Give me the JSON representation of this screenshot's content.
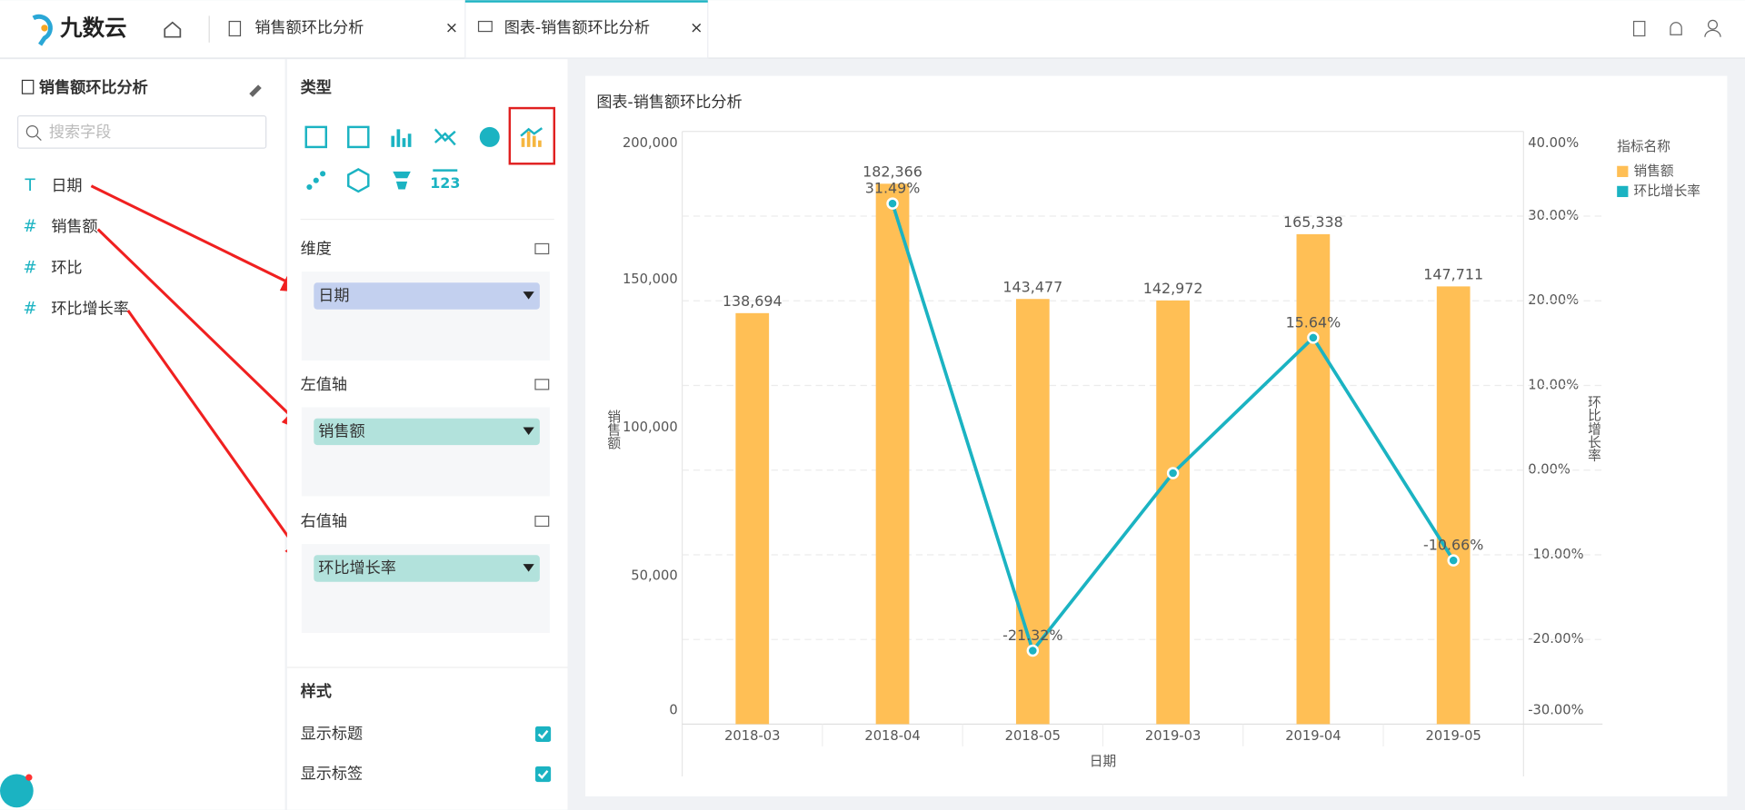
{
  "app": {
    "logo": "九数云"
  },
  "tabs": [
    {
      "label": "销售额环比分析"
    },
    {
      "label": "图表-销售额环比分析"
    }
  ],
  "dataset": {
    "title": "销售额环比分析",
    "search_placeholder": "搜索字段",
    "fields": [
      {
        "type": "T",
        "name": "日期"
      },
      {
        "type": "#",
        "name": "销售额"
      },
      {
        "type": "#",
        "name": "环比"
      },
      {
        "type": "#",
        "name": "环比增长率"
      }
    ]
  },
  "config": {
    "type_heading": "类型",
    "type_icon_label": "123",
    "dimension": {
      "label": "维度",
      "field": "日期"
    },
    "left_axis": {
      "label": "左值轴",
      "field": "销售额"
    },
    "right_axis": {
      "label": "右值轴",
      "field": "环比增长率"
    },
    "style": {
      "heading": "样式",
      "options": [
        "显示标题",
        "显示标签"
      ]
    }
  },
  "chart_data": {
    "type": "combo",
    "title": "图表-销售额环比分析",
    "categories": [
      "2018-03",
      "2018-04",
      "2018-05",
      "2019-03",
      "2019-04",
      "2019-05"
    ],
    "series": [
      {
        "name": "销售额",
        "type": "bar",
        "color": "#ffbf55",
        "values": [
          138694,
          182366,
          143477,
          142972,
          165338,
          147711
        ],
        "value_labels": [
          "138,694",
          "182,366",
          "143,477",
          "142,972",
          "165,338",
          "147,711"
        ]
      },
      {
        "name": "环比增长率",
        "type": "line",
        "axis": "y2",
        "color": "#1bb3c2",
        "values": [
          null,
          31.49,
          -21.32,
          -0.35,
          15.64,
          -10.66
        ],
        "value_labels": [
          null,
          "31.49%",
          "-21.32%",
          null,
          "15.64%",
          "-10.66%"
        ]
      }
    ],
    "ylim": [
      0,
      200000
    ],
    "yticks": [
      0,
      {
        "value": 50000,
        "label": "50,000"
      },
      {
        "value": 100000,
        "label": "100,000"
      },
      {
        "value": 150000,
        "label": "150,000"
      },
      {
        "value": 200000,
        "label": "200,000"
      }
    ],
    "y2lim": [
      -30,
      40
    ],
    "y2ticks": [
      {
        "value": -30,
        "label": "-30.00%"
      },
      {
        "value": -20,
        "label": "-20.00%"
      },
      {
        "value": -10,
        "label": "-10.00%"
      },
      {
        "value": 0,
        "label": "0.00%"
      },
      {
        "value": 10,
        "label": "10.00%"
      },
      {
        "value": 20,
        "label": "20.00%"
      },
      {
        "value": 30,
        "label": "30.00%"
      },
      {
        "value": 40,
        "label": "40.00%"
      }
    ],
    "x_label": "日期",
    "y_label": "销售额",
    "y2_label": "环比增长率",
    "legend_title": "指标名称",
    "legend": "right",
    "grid": true
  }
}
